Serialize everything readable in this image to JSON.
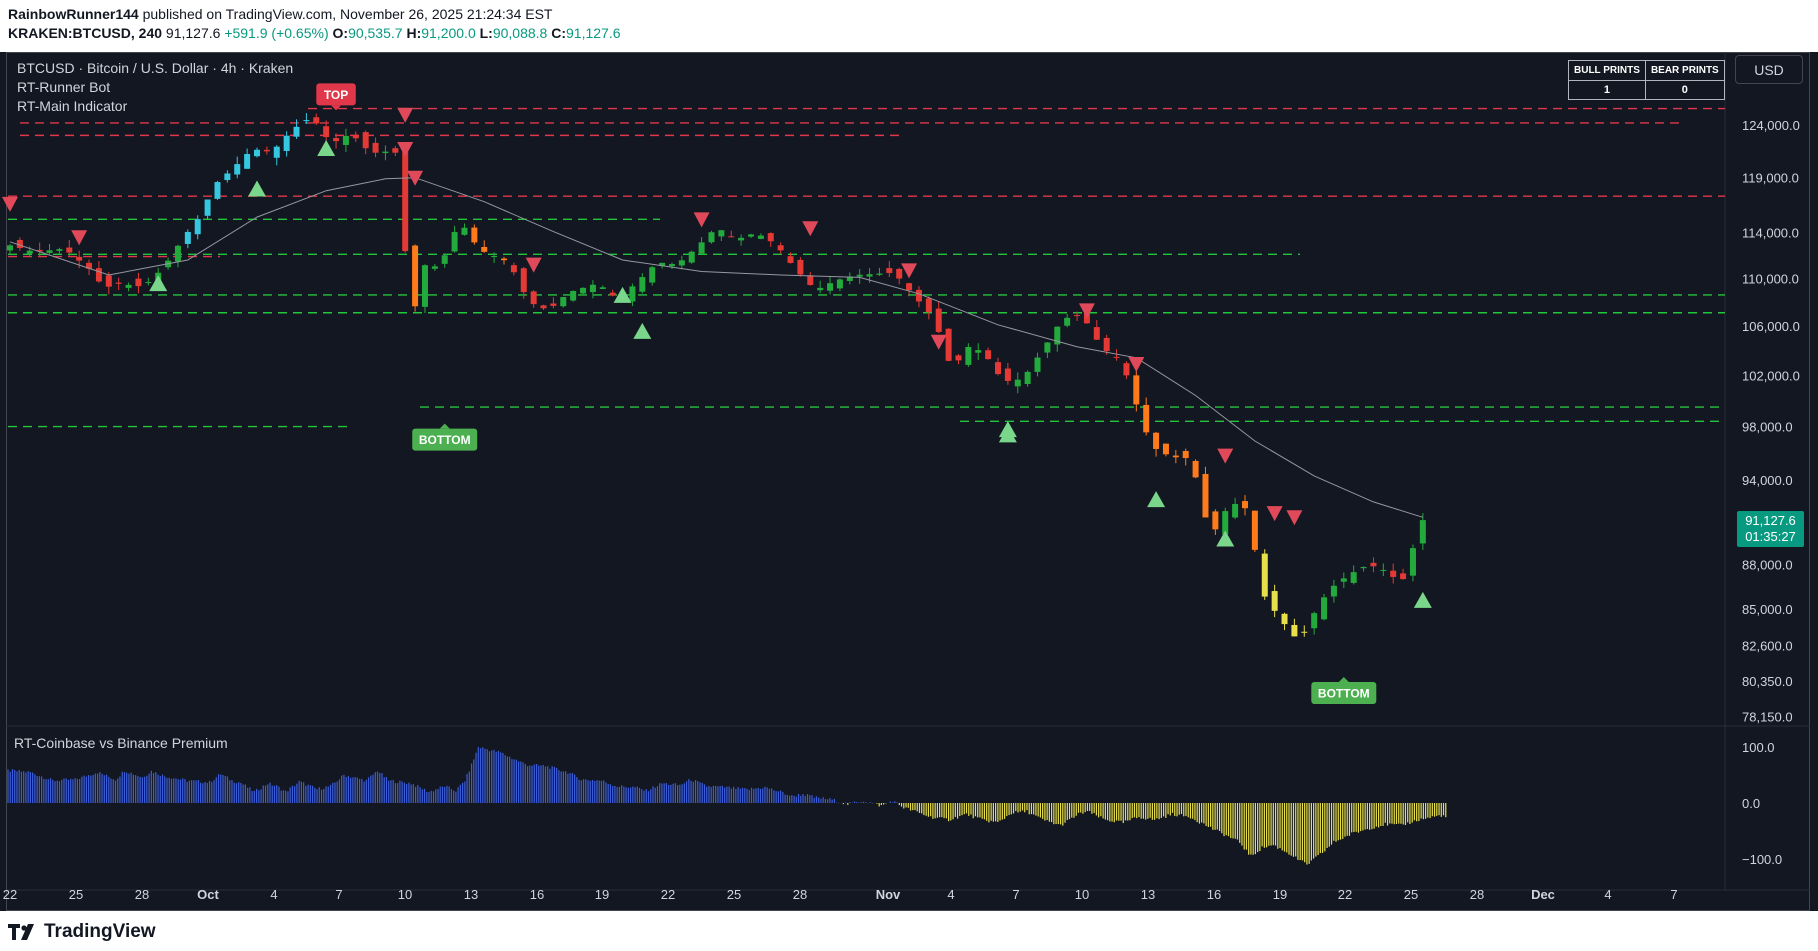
{
  "header": {
    "author": "RainbowRunner144",
    "published_text": "published on TradingView.com, November 26, 2025 21:24:34 EST",
    "symbol_line": "KRAKEN:BTCUSD, 240",
    "last": "91,127.6",
    "change": "+591.9 (+0.65%)",
    "o_label": "O:",
    "o_value": "90,535.7",
    "h_label": "H:",
    "h_value": "91,200.0",
    "l_label": "L:",
    "l_value": "90,088.8",
    "c_label": "C:",
    "c_value": "91,127.6"
  },
  "legend": {
    "title": "BTCUSD · Bitcoin / U.S. Dollar · 4h · Kraken",
    "indicator_1": "RT-Runner Bot",
    "indicator_2": "RT-Main Indicator",
    "indicator_3": "RT-Coinbase vs Binance Premium"
  },
  "currency_button": "USD",
  "prints_table": {
    "bull_header": "BULL PRINTS",
    "bear_header": "BEAR PRINTS",
    "bull_value": "1",
    "bear_value": "0"
  },
  "price_tag": {
    "price": "91,127.6",
    "countdown": "01:35:27"
  },
  "footer": {
    "brand": "TradingView"
  },
  "colors": {
    "background": "#131722",
    "bull_candle": "#22ab3c",
    "bear_candle": "#e53935",
    "support_line": "#24c43d",
    "resistance_line": "#e0384a",
    "up_arrow": "#7ad68a",
    "down_arrow": "#e0495a",
    "premium_positive": "#3b5ddc",
    "premium_negative": "#e8e04a",
    "last_price": "#089981"
  },
  "chart_data": [
    {
      "type": "candlestick",
      "x_axis": {
        "tick_labels": [
          "22",
          "25",
          "28",
          "Oct",
          "4",
          "7",
          "10",
          "13",
          "16",
          "19",
          "22",
          "25",
          "28",
          "Nov",
          "4",
          "7",
          "10",
          "13",
          "16",
          "19",
          "22",
          "25",
          "28",
          "Dec",
          "4",
          "7"
        ]
      },
      "y_axis": {
        "tick_labels": [
          "78,150.0",
          "80,350.0",
          "82,600.0",
          "85,000.0",
          "88,000.0",
          "94,000.0",
          "98,000.0",
          "102,000.0",
          "106,000.0",
          "110,000.0",
          "114,000.0",
          "119,000.0",
          "124,000.0"
        ],
        "ylim": [
          77300,
          127500
        ],
        "scale": "log"
      },
      "price_path": [
        [
          0,
          113000
        ],
        [
          3,
          112300
        ],
        [
          6,
          112600
        ],
        [
          9,
          110500
        ],
        [
          10,
          109000
        ],
        [
          11,
          109600
        ],
        [
          14,
          109300
        ],
        [
          16,
          110900
        ],
        [
          18,
          113500
        ],
        [
          20,
          115800
        ],
        [
          21,
          118200
        ],
        [
          23,
          119800
        ],
        [
          25,
          121700
        ],
        [
          27,
          121400
        ],
        [
          29,
          123500
        ],
        [
          31,
          124800
        ],
        [
          33,
          122200
        ],
        [
          35,
          123200
        ],
        [
          37,
          121300
        ],
        [
          39,
          121500
        ],
        [
          40,
          121200
        ],
        [
          41,
          104200
        ],
        [
          42,
          111200
        ],
        [
          44,
          111000
        ],
        [
          46,
          115100
        ],
        [
          48,
          112500
        ],
        [
          51,
          111400
        ],
        [
          53,
          108000
        ],
        [
          55,
          107300
        ],
        [
          57,
          108800
        ],
        [
          60,
          109600
        ],
        [
          62,
          108200
        ],
        [
          64,
          109700
        ],
        [
          66,
          111400
        ],
        [
          68,
          111200
        ],
        [
          70,
          112700
        ],
        [
          72,
          114500
        ],
        [
          74,
          113400
        ],
        [
          76,
          114000
        ],
        [
          78,
          113000
        ],
        [
          80,
          110800
        ],
        [
          82,
          109000
        ],
        [
          84,
          109800
        ],
        [
          86,
          110300
        ],
        [
          88,
          110400
        ],
        [
          90,
          110500
        ],
        [
          92,
          108500
        ],
        [
          94,
          106700
        ],
        [
          96,
          102000
        ],
        [
          97,
          104400
        ],
        [
          99,
          103900
        ],
        [
          101,
          101500
        ],
        [
          103,
          101700
        ],
        [
          105,
          104000
        ],
        [
          107,
          106600
        ],
        [
          109,
          106900
        ],
        [
          111,
          104200
        ],
        [
          113,
          103200
        ],
        [
          114,
          100800
        ],
        [
          116,
          96500
        ],
        [
          118,
          95700
        ],
        [
          120,
          95600
        ],
        [
          121,
          92800
        ],
        [
          122,
          89800
        ],
        [
          124,
          92400
        ],
        [
          126,
          91800
        ],
        [
          127,
          86300
        ],
        [
          129,
          84400
        ],
        [
          131,
          82800
        ],
        [
          132,
          84200
        ],
        [
          134,
          86300
        ],
        [
          136,
          87300
        ],
        [
          138,
          88000
        ],
        [
          140,
          87500
        ],
        [
          141,
          86800
        ],
        [
          142,
          87200
        ],
        [
          143,
          91100
        ]
      ],
      "candle_count": 144,
      "moving_average_path": [
        [
          0,
          113200
        ],
        [
          10,
          110300
        ],
        [
          18,
          111600
        ],
        [
          25,
          115400
        ],
        [
          32,
          117800
        ],
        [
          38,
          118900
        ],
        [
          41,
          119000
        ],
        [
          48,
          116800
        ],
        [
          55,
          114100
        ],
        [
          62,
          111600
        ],
        [
          70,
          110600
        ],
        [
          78,
          110300
        ],
        [
          86,
          110100
        ],
        [
          92,
          108700
        ],
        [
          100,
          106100
        ],
        [
          108,
          104300
        ],
        [
          114,
          103400
        ],
        [
          120,
          100400
        ],
        [
          126,
          96900
        ],
        [
          132,
          94300
        ],
        [
          138,
          92400
        ],
        [
          143,
          91300
        ]
      ],
      "horizontal_levels": {
        "resistance": [
          125600,
          124200,
          123000,
          117300,
          111900
        ],
        "support": [
          115200,
          112100,
          108600,
          107100,
          99500,
          98400,
          98000
        ]
      },
      "bull_signals": [
        {
          "candle": 15,
          "price": 109600
        },
        {
          "candle": 25,
          "price": 118000
        },
        {
          "candle": 32,
          "price": 121800
        },
        {
          "candle": 62,
          "price": 108600
        },
        {
          "candle": 64,
          "price": 105600
        },
        {
          "candle": 101,
          "price": 97800
        },
        {
          "candle": 101,
          "price": 97400
        },
        {
          "candle": 116,
          "price": 92600
        },
        {
          "candle": 123,
          "price": 89800
        },
        {
          "candle": 143,
          "price": 85600
        }
      ],
      "bear_signals": [
        {
          "candle": 0,
          "price": 116600
        },
        {
          "candle": 7,
          "price": 113600
        },
        {
          "candle": 40,
          "price": 125000
        },
        {
          "candle": 40,
          "price": 121700
        },
        {
          "candle": 41,
          "price": 119000
        },
        {
          "candle": 53,
          "price": 111200
        },
        {
          "candle": 70,
          "price": 115200
        },
        {
          "candle": 81,
          "price": 114400
        },
        {
          "candle": 91,
          "price": 110700
        },
        {
          "candle": 94,
          "price": 104700
        },
        {
          "candle": 109,
          "price": 107300
        },
        {
          "candle": 114,
          "price": 102900
        },
        {
          "candle": 123,
          "price": 95800
        },
        {
          "candle": 128,
          "price": 91600
        },
        {
          "candle": 130,
          "price": 91300
        }
      ],
      "labels": [
        {
          "text": "TOP",
          "candle": 33,
          "price": 127000,
          "color": "#e0384a"
        },
        {
          "text": "BOTTOM",
          "candle": 44,
          "price": 97000,
          "color": "#4caf50"
        },
        {
          "text": "BOTTOM",
          "candle": 135,
          "price": 79600,
          "color": "#4caf50"
        }
      ]
    },
    {
      "type": "bar",
      "name": "RT-Coinbase vs Binance Premium",
      "y_axis": {
        "tick_labels": [
          "100.0",
          "0.0",
          "−100.0"
        ],
        "ylim": [
          -110,
          110
        ]
      },
      "segments": [
        [
          0,
          58
        ],
        [
          10,
          55
        ],
        [
          20,
          40
        ],
        [
          30,
          42
        ],
        [
          40,
          55
        ],
        [
          48,
          42
        ],
        [
          52,
          58
        ],
        [
          60,
          46
        ],
        [
          64,
          57
        ],
        [
          70,
          48
        ],
        [
          80,
          40
        ],
        [
          90,
          37
        ],
        [
          95,
          52
        ],
        [
          100,
          40
        ],
        [
          104,
          36
        ],
        [
          110,
          20
        ],
        [
          116,
          35
        ],
        [
          120,
          30
        ],
        [
          124,
          20
        ],
        [
          130,
          38
        ],
        [
          138,
          25
        ],
        [
          144,
          30
        ],
        [
          150,
          50
        ],
        [
          160,
          40
        ],
        [
          165,
          58
        ],
        [
          170,
          40
        ],
        [
          180,
          35
        ],
        [
          188,
          20
        ],
        [
          195,
          30
        ],
        [
          200,
          22
        ],
        [
          204,
          40
        ],
        [
          210,
          100
        ],
        [
          215,
          95
        ],
        [
          220,
          90
        ],
        [
          225,
          80
        ],
        [
          232,
          68
        ],
        [
          240,
          66
        ],
        [
          250,
          55
        ],
        [
          256,
          42
        ],
        [
          265,
          40
        ],
        [
          272,
          30
        ],
        [
          280,
          28
        ],
        [
          285,
          22
        ],
        [
          292,
          35
        ],
        [
          300,
          32
        ],
        [
          305,
          42
        ],
        [
          312,
          30
        ],
        [
          320,
          28
        ],
        [
          330,
          24
        ],
        [
          338,
          28
        ],
        [
          345,
          20
        ],
        [
          350,
          12
        ],
        [
          355,
          16
        ],
        [
          360,
          10
        ],
        [
          368,
          6
        ],
        [
          375,
          -2
        ],
        [
          382,
          4
        ],
        [
          390,
          -5
        ],
        [
          395,
          4
        ],
        [
          400,
          -8
        ],
        [
          405,
          -15
        ],
        [
          412,
          -25
        ],
        [
          420,
          -30
        ],
        [
          428,
          -20
        ],
        [
          435,
          -30
        ],
        [
          442,
          -35
        ],
        [
          448,
          -18
        ],
        [
          455,
          -15
        ],
        [
          462,
          -30
        ],
        [
          470,
          -40
        ],
        [
          478,
          -20
        ],
        [
          482,
          -15
        ],
        [
          490,
          -30
        ],
        [
          498,
          -35
        ],
        [
          505,
          -25
        ],
        [
          512,
          -30
        ],
        [
          520,
          -20
        ],
        [
          528,
          -25
        ],
        [
          535,
          -40
        ],
        [
          545,
          -60
        ],
        [
          550,
          -70
        ],
        [
          555,
          -95
        ],
        [
          560,
          -80
        ],
        [
          565,
          -75
        ],
        [
          572,
          -90
        ],
        [
          580,
          -110
        ],
        [
          585,
          -95
        ],
        [
          592,
          -70
        ],
        [
          600,
          -55
        ],
        [
          608,
          -45
        ],
        [
          615,
          -38
        ],
        [
          622,
          -40
        ],
        [
          630,
          -30
        ],
        [
          640,
          -22
        ],
        [
          642,
          -25
        ]
      ],
      "bar_count": 643
    }
  ]
}
